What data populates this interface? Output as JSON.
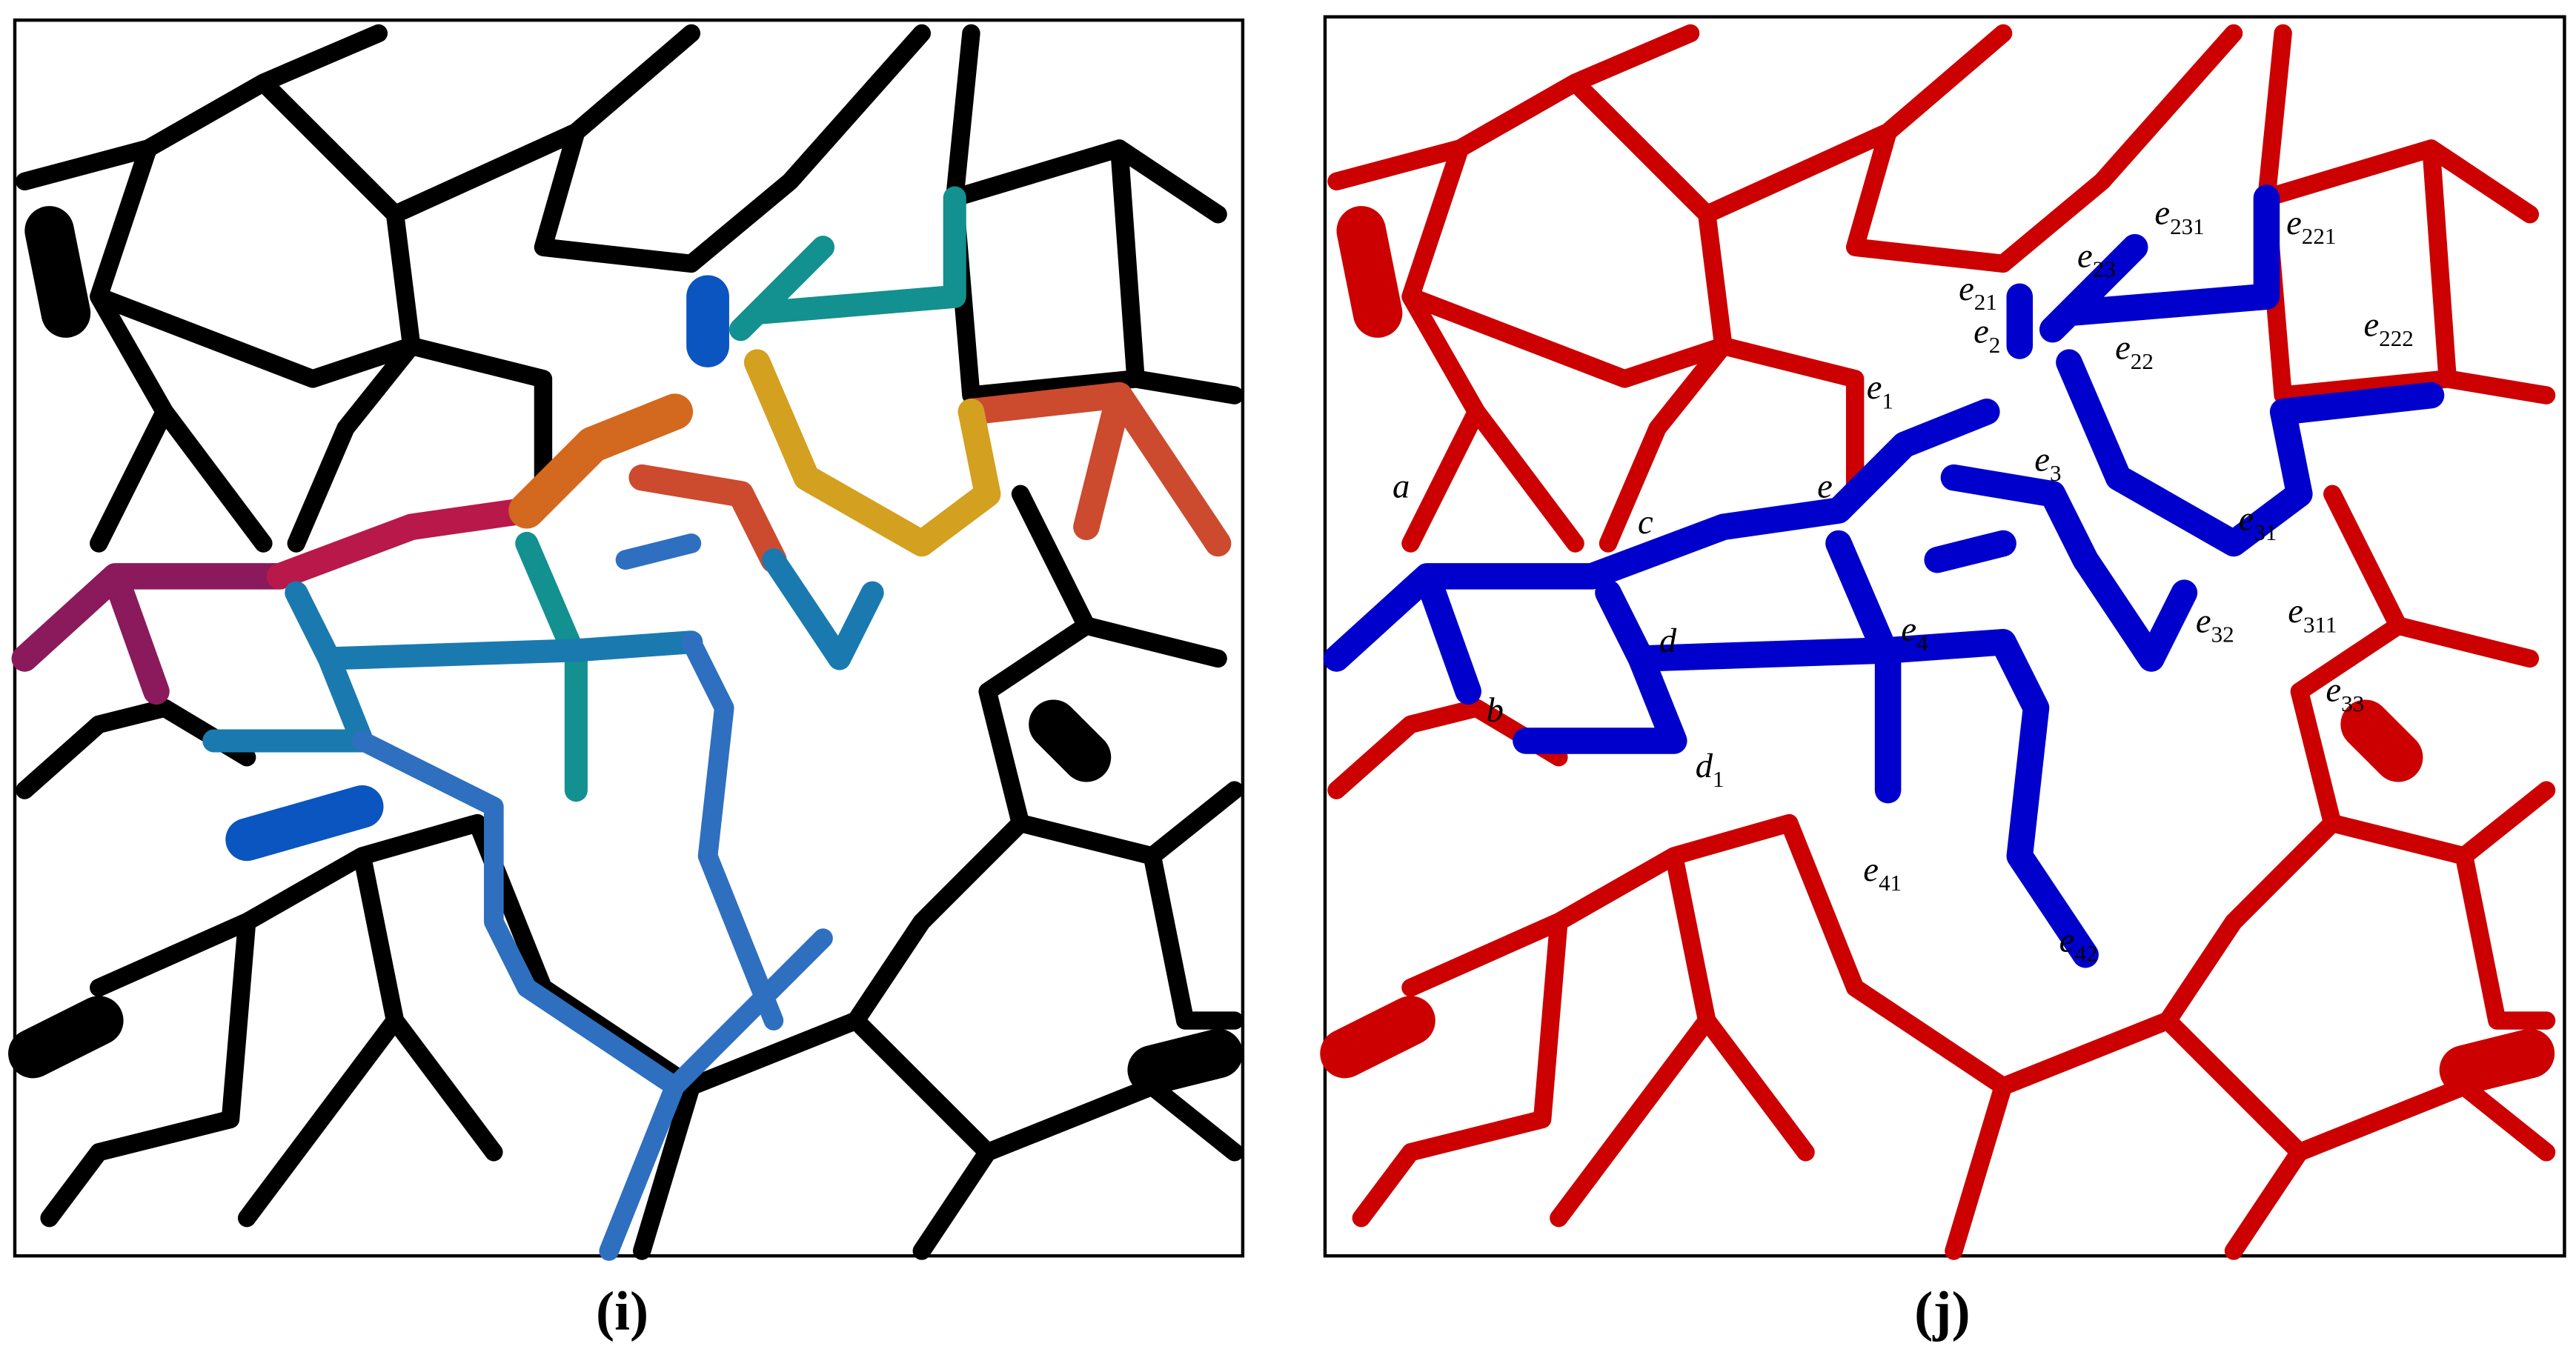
{
  "panels": [
    {
      "caption": "(i)"
    },
    {
      "caption": "(j)",
      "labels": [
        {
          "base": "a"
        },
        {
          "base": "b"
        },
        {
          "base": "c"
        },
        {
          "base": "d"
        },
        {
          "base": "d",
          "sub": "1"
        },
        {
          "base": "e"
        },
        {
          "base": "e",
          "sub": "1"
        },
        {
          "base": "e",
          "sub": "2"
        },
        {
          "base": "e",
          "sub": "21"
        },
        {
          "base": "e",
          "sub": "22"
        },
        {
          "base": "e",
          "sub": "23"
        },
        {
          "base": "e",
          "sub": "221"
        },
        {
          "base": "e",
          "sub": "222"
        },
        {
          "base": "e",
          "sub": "231"
        },
        {
          "base": "e",
          "sub": "3"
        },
        {
          "base": "e",
          "sub": "31"
        },
        {
          "base": "e",
          "sub": "311"
        },
        {
          "base": "e",
          "sub": "32"
        },
        {
          "base": "e",
          "sub": "33"
        },
        {
          "base": "e",
          "sub": "4"
        },
        {
          "base": "e",
          "sub": "41"
        },
        {
          "base": "e",
          "sub": "42"
        }
      ]
    }
  ]
}
